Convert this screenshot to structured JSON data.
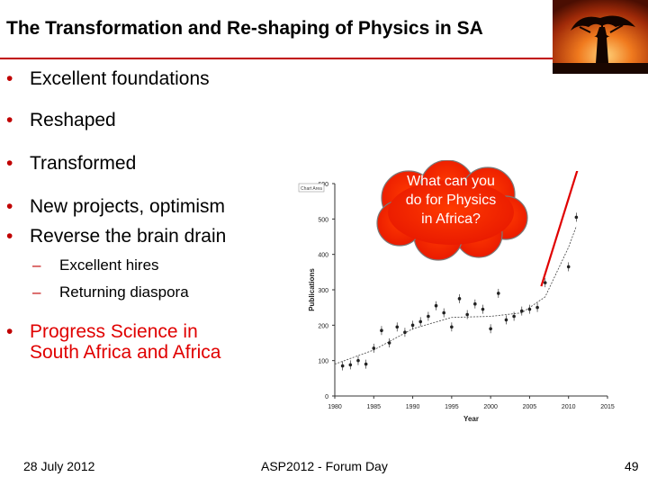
{
  "slide": {
    "title": "The Transformation and Re-shaping of Physics in SA",
    "bullets": [
      "Excellent foundations",
      "Reshaped",
      "Transformed",
      "New projects, optimism",
      "Reverse the brain drain"
    ],
    "sub_bullets": [
      "Excellent hires",
      "Returning diaspora"
    ],
    "progress_bullet": [
      "Progress Science in",
      "South Africa and Africa"
    ],
    "callout": [
      "What can you",
      "do for Physics",
      "in Africa?"
    ],
    "footer": {
      "date": "28 July 2012",
      "event": "ASP2012 - Forum Day",
      "page": "49"
    },
    "image": "baobab-sunset-photo",
    "colors": {
      "accent": "#c00000",
      "bullet_red": "#e00000",
      "cloud": "#ff2a00"
    }
  },
  "chart_data": {
    "type": "scatter",
    "xlabel": "Year",
    "ylabel": "Publications",
    "xlim": [
      1980,
      2015
    ],
    "ylim": [
      0,
      600
    ],
    "xticks": [
      1980,
      1985,
      1990,
      1995,
      2000,
      2005,
      2010,
      2015
    ],
    "yticks": [
      0,
      100,
      200,
      300,
      400,
      500,
      600
    ],
    "logo_text": "Chart Area",
    "points": [
      {
        "x": 1981,
        "y": 85
      },
      {
        "x": 1982,
        "y": 88
      },
      {
        "x": 1983,
        "y": 100
      },
      {
        "x": 1984,
        "y": 90
      },
      {
        "x": 1985,
        "y": 135
      },
      {
        "x": 1986,
        "y": 185
      },
      {
        "x": 1987,
        "y": 150
      },
      {
        "x": 1988,
        "y": 195
      },
      {
        "x": 1989,
        "y": 180
      },
      {
        "x": 1990,
        "y": 200
      },
      {
        "x": 1991,
        "y": 210
      },
      {
        "x": 1992,
        "y": 225
      },
      {
        "x": 1993,
        "y": 255
      },
      {
        "x": 1994,
        "y": 235
      },
      {
        "x": 1995,
        "y": 195
      },
      {
        "x": 1996,
        "y": 275
      },
      {
        "x": 1997,
        "y": 230
      },
      {
        "x": 1998,
        "y": 260
      },
      {
        "x": 1999,
        "y": 245
      },
      {
        "x": 2000,
        "y": 190
      },
      {
        "x": 2001,
        "y": 290
      },
      {
        "x": 2002,
        "y": 215
      },
      {
        "x": 2003,
        "y": 225
      },
      {
        "x": 2004,
        "y": 240
      },
      {
        "x": 2005,
        "y": 245
      },
      {
        "x": 2006,
        "y": 250
      },
      {
        "x": 2007,
        "y": 320
      },
      {
        "x": 2010,
        "y": 365
      },
      {
        "x": 2011,
        "y": 505
      }
    ],
    "trend": [
      {
        "x": 1980,
        "y": 90
      },
      {
        "x": 1985,
        "y": 130
      },
      {
        "x": 1990,
        "y": 190
      },
      {
        "x": 1995,
        "y": 222
      },
      {
        "x": 2000,
        "y": 225
      },
      {
        "x": 2004,
        "y": 235
      },
      {
        "x": 2007,
        "y": 280
      },
      {
        "x": 2010,
        "y": 420
      },
      {
        "x": 2011,
        "y": 480
      }
    ],
    "arrow": {
      "from": {
        "x": 2006.5,
        "y": 310
      },
      "to": {
        "x": 2013,
        "y": 770
      }
    }
  }
}
